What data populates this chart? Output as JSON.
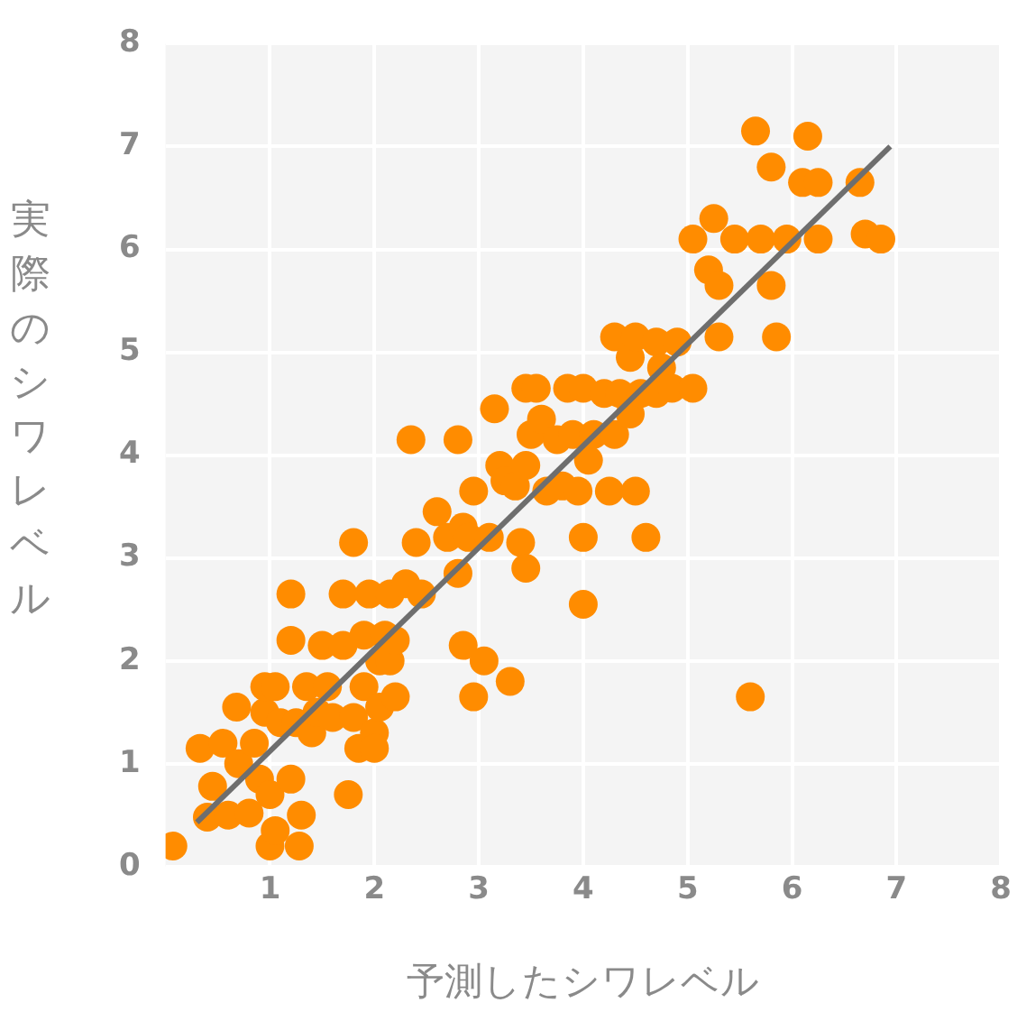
{
  "chart_data": {
    "type": "scatter",
    "xlabel": "予測したシワレベル",
    "ylabel": "実際のシワレベル",
    "xlim": [
      0,
      8
    ],
    "ylim": [
      0,
      8
    ],
    "xticks": [
      1,
      2,
      3,
      4,
      5,
      6,
      7,
      8
    ],
    "yticks": [
      0,
      1,
      2,
      3,
      4,
      5,
      6,
      7,
      8
    ],
    "grid": true,
    "legend": false,
    "marker": "circle",
    "series": [
      {
        "color": "#ff8c00",
        "x": [
          0.07,
          0.33,
          0.4,
          0.45,
          0.55,
          0.6,
          0.68,
          0.7,
          0.8,
          0.85,
          0.9,
          0.95,
          0.95,
          1.0,
          1.0,
          1.05,
          1.05,
          1.1,
          1.2,
          1.2,
          1.2,
          1.25,
          1.28,
          1.3,
          1.35,
          1.4,
          1.45,
          1.5,
          1.55,
          1.6,
          1.7,
          1.7,
          1.75,
          1.8,
          1.8,
          1.85,
          1.9,
          1.9,
          1.95,
          2.0,
          2.0,
          2.05,
          2.05,
          2.1,
          2.15,
          2.15,
          2.2,
          2.2,
          2.3,
          2.35,
          2.4,
          2.45,
          2.6,
          2.7,
          2.8,
          2.8,
          2.85,
          2.9,
          2.85,
          2.95,
          2.95,
          3.05,
          3.1,
          3.15,
          3.2,
          3.25,
          3.3,
          3.35,
          3.4,
          3.45,
          3.45,
          3.45,
          3.5,
          3.55,
          3.6,
          3.65,
          3.75,
          3.8,
          3.85,
          3.9,
          3.95,
          4.0,
          4.0,
          4.0,
          4.05,
          4.1,
          4.2,
          4.25,
          4.3,
          4.3,
          4.35,
          4.45,
          4.45,
          4.5,
          4.5,
          4.55,
          4.6,
          4.7,
          4.7,
          4.75,
          4.85,
          4.9,
          5.05,
          5.05,
          5.2,
          5.25,
          5.3,
          5.3,
          5.45,
          5.6,
          5.65,
          5.7,
          5.8,
          5.8,
          5.85,
          5.95,
          6.1,
          6.15,
          6.25,
          6.25,
          6.65,
          6.7,
          6.85
        ],
        "values": [
          0.2,
          1.15,
          0.48,
          0.78,
          1.2,
          0.5,
          1.55,
          1.0,
          0.52,
          1.2,
          0.85,
          1.5,
          1.75,
          0.7,
          0.2,
          0.35,
          1.75,
          1.4,
          0.85,
          2.2,
          2.65,
          1.4,
          0.2,
          0.5,
          1.75,
          1.3,
          1.5,
          2.15,
          1.75,
          1.45,
          2.15,
          2.65,
          0.7,
          1.45,
          3.15,
          1.15,
          1.75,
          2.25,
          2.65,
          1.3,
          1.15,
          2.0,
          1.55,
          2.25,
          2.65,
          2.0,
          2.2,
          1.65,
          2.75,
          4.15,
          3.15,
          2.65,
          3.45,
          3.2,
          2.85,
          4.15,
          3.3,
          3.2,
          2.15,
          3.65,
          1.65,
          2.0,
          3.2,
          4.45,
          3.9,
          3.75,
          1.8,
          3.7,
          3.15,
          2.9,
          3.9,
          4.65,
          4.2,
          4.65,
          4.35,
          3.65,
          4.15,
          3.7,
          4.65,
          4.2,
          3.65,
          4.65,
          3.2,
          2.55,
          3.95,
          4.2,
          4.6,
          3.65,
          4.2,
          5.15,
          4.6,
          4.95,
          4.4,
          3.65,
          5.15,
          4.6,
          3.2,
          5.1,
          4.6,
          4.85,
          4.65,
          5.1,
          4.65,
          6.1,
          5.8,
          6.3,
          5.65,
          5.15,
          6.1,
          1.65,
          7.15,
          6.1,
          6.8,
          5.65,
          5.15,
          6.1,
          6.65,
          7.1,
          6.65,
          6.1,
          6.65,
          6.15,
          6.1
        ]
      },
      {
        "type": "line",
        "color": "#6e6e6e",
        "x": [
          0.3,
          6.94
        ],
        "values": [
          0.43,
          7.0
        ],
        "marker": "none",
        "line_style": "solid"
      }
    ]
  }
}
